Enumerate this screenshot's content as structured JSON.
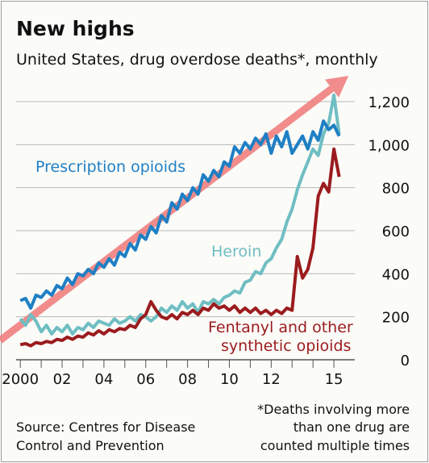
{
  "chart_data": {
    "type": "line",
    "title": "New highs",
    "subtitle": "United States, drug overdose deaths*, monthly",
    "xlabel": "",
    "ylabel": "",
    "xlim": [
      1999.8,
      2016.0
    ],
    "ylim": [
      0,
      1200
    ],
    "y_ticks": [
      0,
      200,
      400,
      600,
      800,
      1000,
      1200
    ],
    "y_tick_labels": [
      "0",
      "200",
      "400",
      "600",
      "800",
      "1,000",
      "1,200"
    ],
    "x_ticks": [
      2000,
      2002,
      2004,
      2006,
      2008,
      2010,
      2012,
      2015
    ],
    "x_tick_labels": [
      "2000",
      "02",
      "04",
      "06",
      "08",
      "10",
      "12",
      "15"
    ],
    "grid": true,
    "legend": "direct labels",
    "series": [
      {
        "name": "Prescription opioids",
        "color": "#1f7fc4",
        "points": [
          [
            2000.0,
            275
          ],
          [
            2000.25,
            285
          ],
          [
            2000.5,
            240
          ],
          [
            2000.75,
            300
          ],
          [
            2001.0,
            290
          ],
          [
            2001.25,
            320
          ],
          [
            2001.5,
            300
          ],
          [
            2001.75,
            345
          ],
          [
            2002.0,
            330
          ],
          [
            2002.25,
            380
          ],
          [
            2002.5,
            350
          ],
          [
            2002.75,
            400
          ],
          [
            2003.0,
            390
          ],
          [
            2003.25,
            420
          ],
          [
            2003.5,
            400
          ],
          [
            2003.75,
            450
          ],
          [
            2004.0,
            430
          ],
          [
            2004.25,
            470
          ],
          [
            2004.5,
            440
          ],
          [
            2004.75,
            500
          ],
          [
            2005.0,
            480
          ],
          [
            2005.25,
            540
          ],
          [
            2005.5,
            510
          ],
          [
            2005.75,
            580
          ],
          [
            2006.0,
            560
          ],
          [
            2006.25,
            620
          ],
          [
            2006.5,
            590
          ],
          [
            2006.75,
            670
          ],
          [
            2007.0,
            640
          ],
          [
            2007.25,
            730
          ],
          [
            2007.5,
            700
          ],
          [
            2007.75,
            770
          ],
          [
            2008.0,
            740
          ],
          [
            2008.25,
            800
          ],
          [
            2008.5,
            770
          ],
          [
            2008.75,
            860
          ],
          [
            2009.0,
            830
          ],
          [
            2009.25,
            880
          ],
          [
            2009.5,
            850
          ],
          [
            2009.75,
            920
          ],
          [
            2010.0,
            900
          ],
          [
            2010.25,
            990
          ],
          [
            2010.5,
            960
          ],
          [
            2010.75,
            1010
          ],
          [
            2011.0,
            980
          ],
          [
            2011.25,
            1030
          ],
          [
            2011.5,
            1000
          ],
          [
            2011.75,
            1050
          ],
          [
            2012.0,
            960
          ],
          [
            2012.25,
            1040
          ],
          [
            2012.5,
            990
          ],
          [
            2012.75,
            1060
          ],
          [
            2013.0,
            960
          ],
          [
            2013.25,
            1000
          ],
          [
            2013.5,
            1040
          ],
          [
            2013.75,
            980
          ],
          [
            2014.0,
            1060
          ],
          [
            2014.25,
            1020
          ],
          [
            2014.5,
            1110
          ],
          [
            2014.75,
            1070
          ],
          [
            2015.0,
            1090
          ],
          [
            2015.25,
            1040
          ]
        ]
      },
      {
        "name": "Heroin",
        "color": "#6fbec3",
        "points": [
          [
            2000.0,
            190
          ],
          [
            2000.25,
            160
          ],
          [
            2000.5,
            210
          ],
          [
            2000.75,
            180
          ],
          [
            2001.0,
            130
          ],
          [
            2001.25,
            160
          ],
          [
            2001.5,
            120
          ],
          [
            2001.75,
            150
          ],
          [
            2002.0,
            130
          ],
          [
            2002.25,
            160
          ],
          [
            2002.5,
            120
          ],
          [
            2002.75,
            150
          ],
          [
            2003.0,
            140
          ],
          [
            2003.25,
            170
          ],
          [
            2003.5,
            150
          ],
          [
            2003.75,
            180
          ],
          [
            2004.0,
            170
          ],
          [
            2004.25,
            160
          ],
          [
            2004.5,
            190
          ],
          [
            2004.75,
            170
          ],
          [
            2005.0,
            180
          ],
          [
            2005.25,
            200
          ],
          [
            2005.5,
            180
          ],
          [
            2005.75,
            210
          ],
          [
            2006.0,
            200
          ],
          [
            2006.25,
            180
          ],
          [
            2006.5,
            200
          ],
          [
            2006.75,
            240
          ],
          [
            2007.0,
            220
          ],
          [
            2007.25,
            250
          ],
          [
            2007.5,
            230
          ],
          [
            2007.75,
            270
          ],
          [
            2008.0,
            240
          ],
          [
            2008.25,
            260
          ],
          [
            2008.5,
            220
          ],
          [
            2008.75,
            270
          ],
          [
            2009.0,
            260
          ],
          [
            2009.25,
            280
          ],
          [
            2009.5,
            260
          ],
          [
            2009.75,
            290
          ],
          [
            2010.0,
            300
          ],
          [
            2010.25,
            320
          ],
          [
            2010.5,
            310
          ],
          [
            2010.75,
            360
          ],
          [
            2011.0,
            370
          ],
          [
            2011.25,
            410
          ],
          [
            2011.5,
            400
          ],
          [
            2011.75,
            450
          ],
          [
            2012.0,
            470
          ],
          [
            2012.25,
            520
          ],
          [
            2012.5,
            560
          ],
          [
            2012.75,
            640
          ],
          [
            2013.0,
            700
          ],
          [
            2013.25,
            790
          ],
          [
            2013.5,
            860
          ],
          [
            2013.75,
            920
          ],
          [
            2014.0,
            980
          ],
          [
            2014.25,
            950
          ],
          [
            2014.5,
            1050
          ],
          [
            2014.75,
            1100
          ],
          [
            2015.0,
            1230
          ],
          [
            2015.25,
            1050
          ]
        ]
      },
      {
        "name": "Fentanyl and other synthetic opioids",
        "color": "#9b1b1e",
        "points": [
          [
            2000.0,
            70
          ],
          [
            2000.25,
            75
          ],
          [
            2000.5,
            65
          ],
          [
            2000.75,
            80
          ],
          [
            2001.0,
            75
          ],
          [
            2001.25,
            85
          ],
          [
            2001.5,
            80
          ],
          [
            2001.75,
            95
          ],
          [
            2002.0,
            90
          ],
          [
            2002.25,
            105
          ],
          [
            2002.5,
            95
          ],
          [
            2002.75,
            110
          ],
          [
            2003.0,
            105
          ],
          [
            2003.25,
            125
          ],
          [
            2003.5,
            115
          ],
          [
            2003.75,
            135
          ],
          [
            2004.0,
            120
          ],
          [
            2004.25,
            140
          ],
          [
            2004.5,
            130
          ],
          [
            2004.75,
            145
          ],
          [
            2005.0,
            140
          ],
          [
            2005.25,
            160
          ],
          [
            2005.5,
            150
          ],
          [
            2005.75,
            190
          ],
          [
            2006.0,
            210
          ],
          [
            2006.25,
            270
          ],
          [
            2006.5,
            230
          ],
          [
            2006.75,
            200
          ],
          [
            2007.0,
            190
          ],
          [
            2007.25,
            210
          ],
          [
            2007.5,
            190
          ],
          [
            2007.75,
            220
          ],
          [
            2008.0,
            210
          ],
          [
            2008.25,
            230
          ],
          [
            2008.5,
            210
          ],
          [
            2008.75,
            240
          ],
          [
            2009.0,
            230
          ],
          [
            2009.25,
            260
          ],
          [
            2009.5,
            240
          ],
          [
            2009.75,
            250
          ],
          [
            2010.0,
            230
          ],
          [
            2010.25,
            250
          ],
          [
            2010.5,
            220
          ],
          [
            2010.75,
            240
          ],
          [
            2011.0,
            220
          ],
          [
            2011.25,
            240
          ],
          [
            2011.5,
            215
          ],
          [
            2011.75,
            230
          ],
          [
            2012.0,
            210
          ],
          [
            2012.25,
            230
          ],
          [
            2012.5,
            215
          ],
          [
            2012.75,
            240
          ],
          [
            2013.0,
            230
          ],
          [
            2013.25,
            480
          ],
          [
            2013.5,
            380
          ],
          [
            2013.75,
            420
          ],
          [
            2014.0,
            520
          ],
          [
            2014.25,
            760
          ],
          [
            2014.5,
            820
          ],
          [
            2014.75,
            780
          ],
          [
            2015.0,
            980
          ],
          [
            2015.25,
            850
          ]
        ]
      }
    ],
    "trend_arrow": {
      "color": "#f08080",
      "from": [
        1999.8,
        90
      ],
      "to": [
        2015.7,
        1320
      ]
    },
    "source": "Source: Centres for Disease Control and Prevention",
    "footnote": "*Deaths involving more than one drug are counted multiple times",
    "labels": {
      "prescription": "Prescription opioids",
      "heroin": "Heroin",
      "fentanyl_line1": "Fentanyl and other",
      "fentanyl_line2": "synthetic opioids",
      "source_line1": "Source: Centres for Disease",
      "source_line2": "Control and Prevention",
      "footnote_line1": "*Deaths involving more",
      "footnote_line2": "than one drug are",
      "footnote_line3": "counted multiple times"
    }
  }
}
